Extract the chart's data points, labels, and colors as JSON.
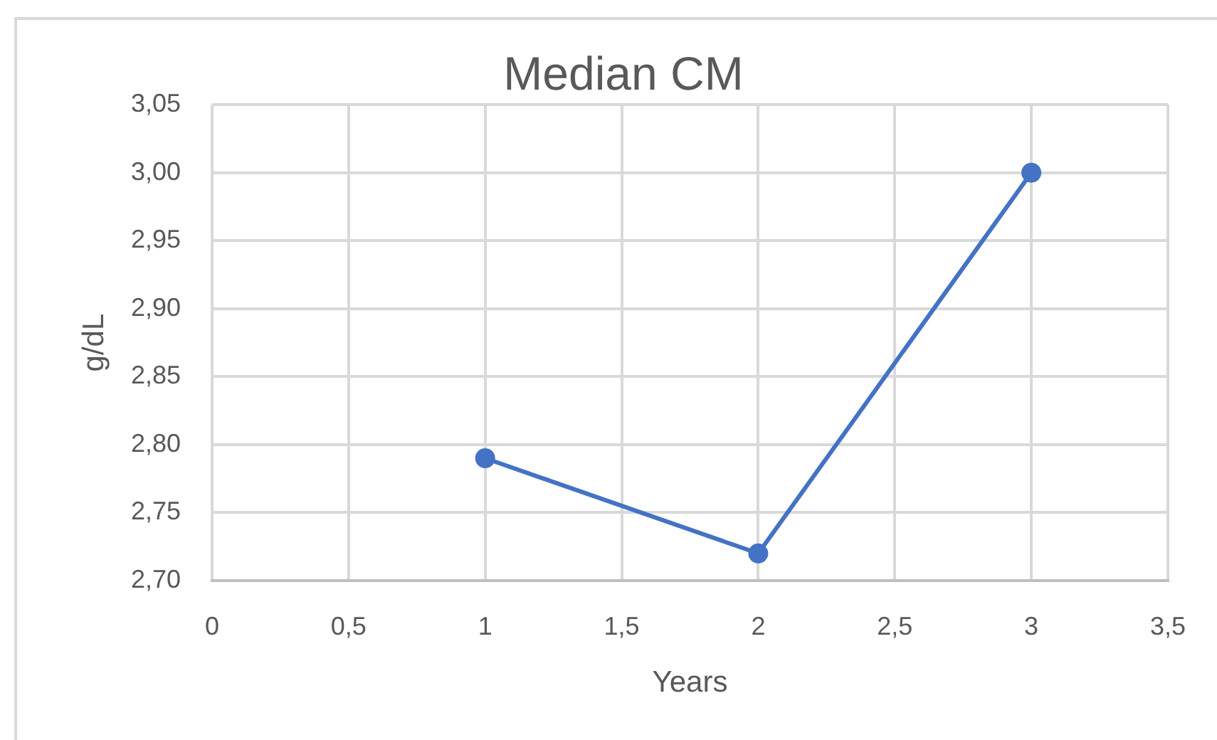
{
  "chart_data": {
    "type": "line",
    "title": "Median CM",
    "xlabel": "Years",
    "ylabel": "g/dL",
    "x": [
      1,
      2,
      3
    ],
    "values": [
      2.79,
      2.72,
      3.0
    ],
    "color": "#4472c4",
    "xlim": [
      0,
      3.5
    ],
    "xticks": [
      0,
      {
        "value": 0.5,
        "label": "0,5"
      },
      1,
      {
        "value": 1.5,
        "label": "1,5"
      },
      2,
      {
        "value": 2.5,
        "label": "2,5"
      },
      3,
      {
        "value": 3.5,
        "label": "3,5"
      }
    ],
    "ylim": [
      2.7,
      3.05
    ],
    "yticks": [
      {
        "value": 2.7,
        "label": "2,70"
      },
      {
        "value": 2.75,
        "label": "2,75"
      },
      {
        "value": 2.8,
        "label": "2,80"
      },
      {
        "value": 2.85,
        "label": "2,85"
      },
      {
        "value": 2.9,
        "label": "2,90"
      },
      {
        "value": 2.95,
        "label": "2,95"
      },
      {
        "value": 3.0,
        "label": "3,00"
      },
      {
        "value": 3.05,
        "label": "3,05"
      }
    ],
    "grid": true,
    "marker": "circle",
    "line_style": "solid"
  }
}
